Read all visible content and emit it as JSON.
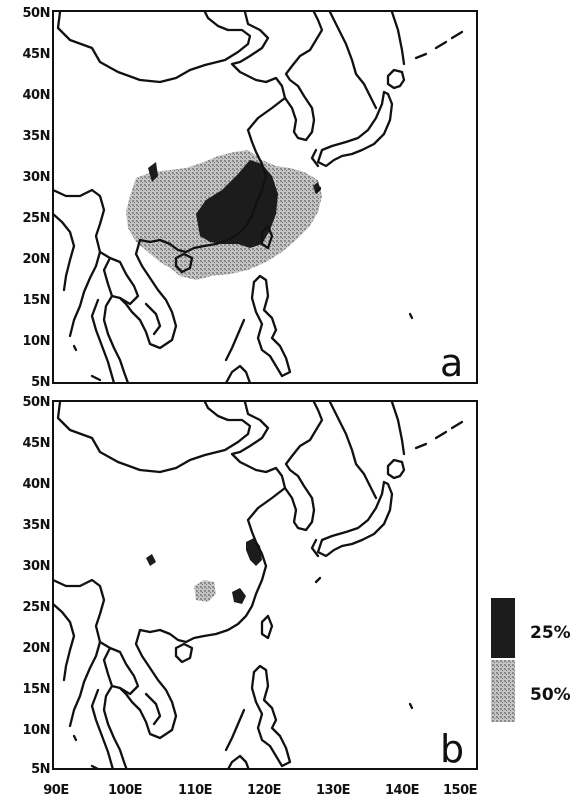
{
  "lat_labels": [
    "50N",
    "45N",
    "40N",
    "35N",
    "30N",
    "25N",
    "20N",
    "15N",
    "10N",
    "5N"
  ],
  "lon_labels": [
    "90E",
    "100E",
    "110E",
    "120E",
    "130E",
    "140E",
    "150E"
  ],
  "panels": [
    {
      "letter": "a"
    },
    {
      "letter": "b"
    }
  ],
  "legend": {
    "dark_label": "25%",
    "light_label": "50%",
    "dark_color": "#1c1c1c",
    "light_color": "#9a9a9a"
  }
}
